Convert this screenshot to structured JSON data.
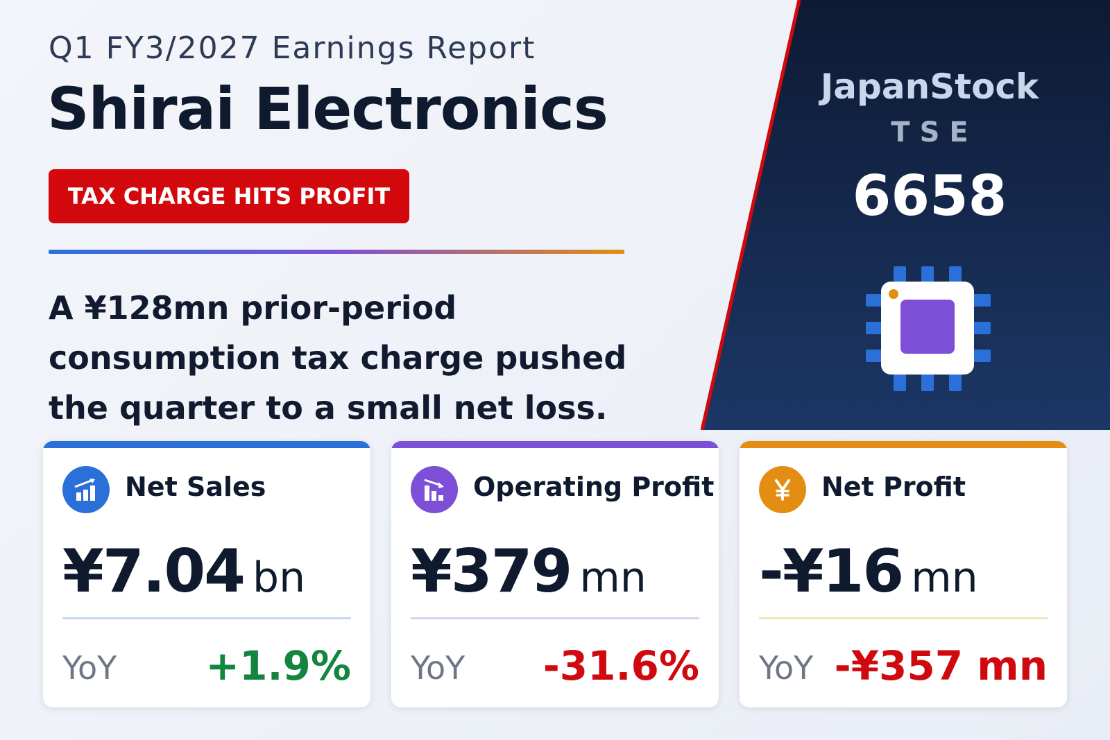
{
  "header": {
    "subtitle": "Q1 FY3/2027 Earnings Report",
    "company": "Shirai Electronics",
    "badge": "TAX CHARGE HITS PROFIT",
    "summary": "A ¥128mn prior-period consumption tax charge pushed the quarter to a small net loss."
  },
  "brand": {
    "name": "JapanStock",
    "exchange": "TSE",
    "ticker": "6658",
    "icon": "microchip-icon"
  },
  "colors": {
    "navy": "#0f1f3d",
    "red": "#d3080c",
    "blue": "#2b6fd8",
    "purple": "#7d4fd6",
    "orange": "#e38e12",
    "positive": "#14853e",
    "negative": "#d0090f"
  },
  "metrics": [
    {
      "label": "Net Sales",
      "icon": "bar-chart-up-icon",
      "value": "¥7.04",
      "unit": "bn",
      "yoy_label": "YoY",
      "yoy": "+1.9%",
      "trend": "positive",
      "accent": "#2b6fd8",
      "sep_color": "#c3d8ee"
    },
    {
      "label": "Operating Profit",
      "icon": "bar-chart-down-icon",
      "value": "¥379",
      "unit": "mn",
      "yoy_label": "YoY",
      "yoy": "-31.6%",
      "trend": "negative",
      "accent": "#7d4fd6",
      "sep_color": "#dccff2"
    },
    {
      "label": "Net Profit",
      "icon": "yen-icon",
      "value": "-¥16",
      "unit": "mn",
      "yoy_label": "YoY",
      "yoy": "-¥357 mn",
      "trend": "negative",
      "accent": "#e38e12",
      "sep_color": "#f4e3bd"
    }
  ]
}
